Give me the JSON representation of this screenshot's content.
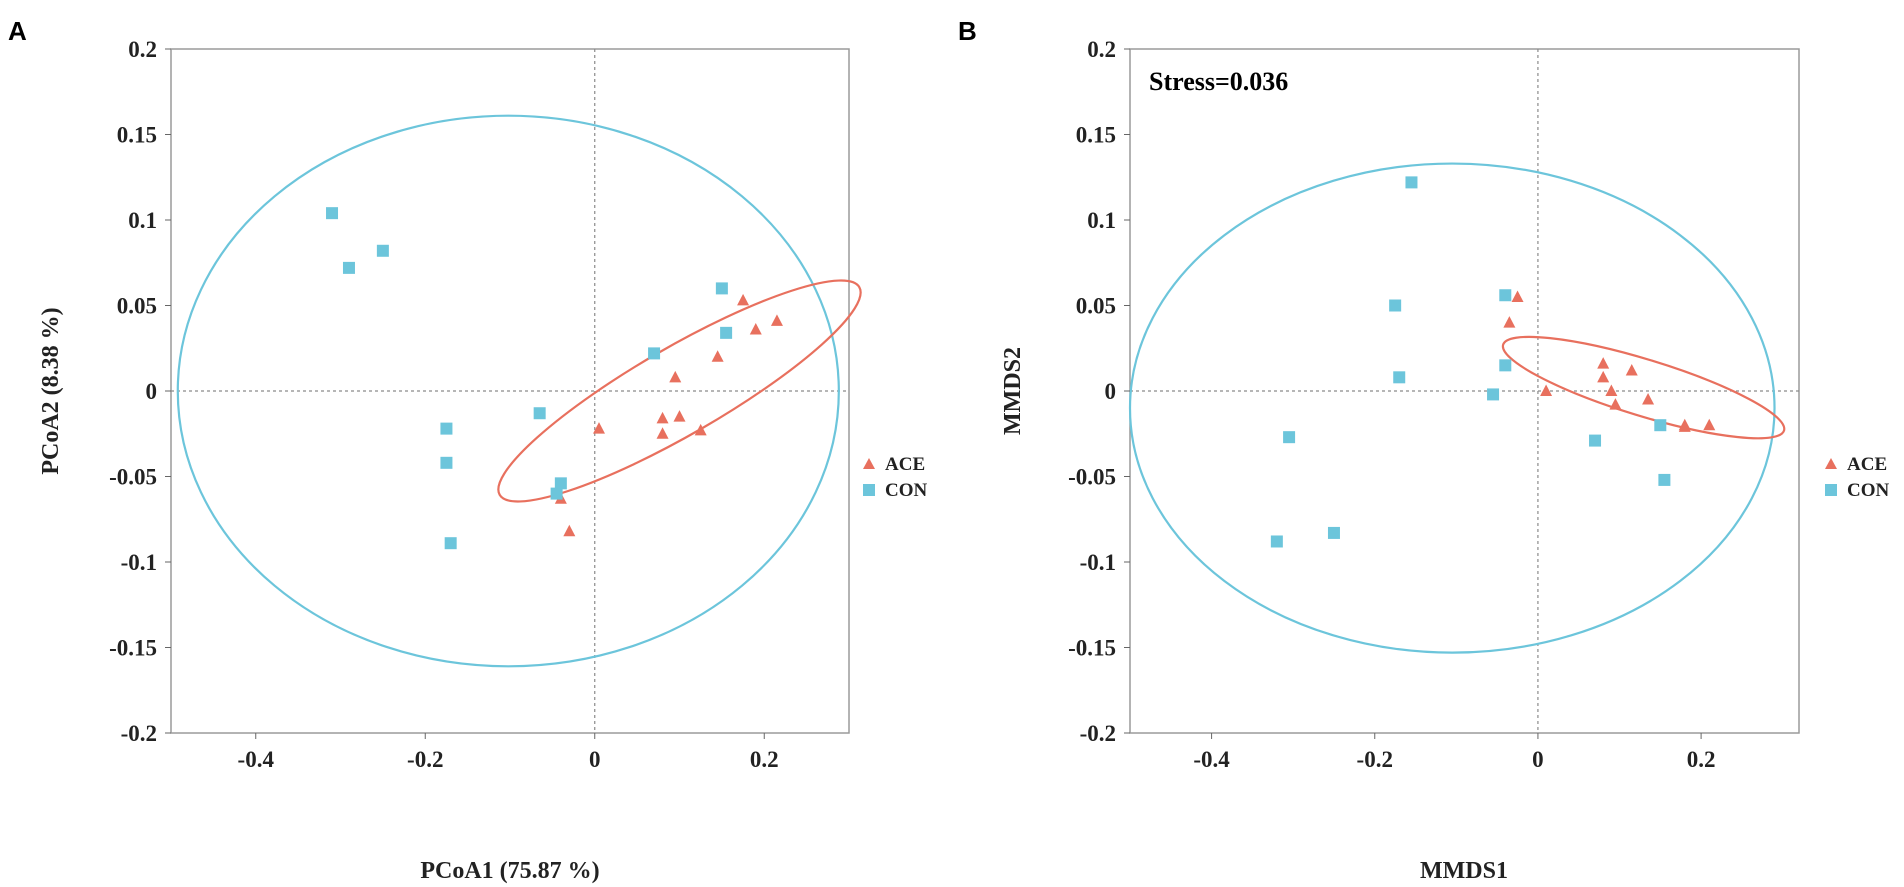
{
  "chart_data": [
    {
      "panel": "A",
      "type": "scatter",
      "xlabel": "PCoA1 (75.87 %)",
      "ylabel": "PCoA2 (8.38 %)",
      "xlim": [
        -0.5,
        0.3
      ],
      "ylim": [
        -0.2,
        0.2
      ],
      "xticks": [
        -0.4,
        -0.2,
        0,
        0.2
      ],
      "xtick_labels": [
        "-0.4",
        "-0.2",
        "0",
        "0.2"
      ],
      "yticks": [
        0.2,
        0.15,
        0.1,
        0.05,
        0,
        -0.05,
        -0.1,
        -0.15,
        -0.2
      ],
      "ytick_labels": [
        "0.2",
        "0.15",
        "0.1",
        "0.05",
        "0",
        "-0.05",
        "-0.1",
        "-0.15",
        "-0.2"
      ],
      "reference_lines": {
        "x": 0,
        "y": 0
      },
      "legend_position": "right",
      "series": [
        {
          "name": "ACE",
          "marker": "triangle",
          "color": "#E8705E",
          "points": [
            [
              0.005,
              -0.022
            ],
            [
              0.095,
              0.008
            ],
            [
              0.08,
              -0.016
            ],
            [
              0.1,
              -0.015
            ],
            [
              0.08,
              -0.025
            ],
            [
              0.125,
              -0.023
            ],
            [
              0.145,
              0.02
            ],
            [
              0.175,
              0.053
            ],
            [
              0.19,
              0.036
            ],
            [
              0.215,
              0.041
            ],
            [
              -0.04,
              -0.063
            ],
            [
              -0.03,
              -0.082
            ]
          ]
        },
        {
          "name": "CON",
          "marker": "square",
          "color": "#6CC5DB",
          "points": [
            [
              -0.31,
              0.104
            ],
            [
              -0.29,
              0.072
            ],
            [
              -0.25,
              0.082
            ],
            [
              -0.175,
              -0.022
            ],
            [
              -0.175,
              -0.042
            ],
            [
              -0.17,
              -0.089
            ],
            [
              -0.065,
              -0.013
            ],
            [
              -0.045,
              -0.06
            ],
            [
              -0.04,
              -0.054
            ],
            [
              0.07,
              0.022
            ],
            [
              0.15,
              0.06
            ],
            [
              0.155,
              0.034
            ]
          ]
        }
      ],
      "ellipses": [
        {
          "group": "CON",
          "color": "#6CC5DB",
          "center": [
            -0.102,
            0.0
          ],
          "radii": [
            0.39,
            0.161
          ],
          "angle_deg": 0
        },
        {
          "group": "ACE",
          "color": "#E8705E",
          "center": [
            0.1,
            0.0
          ],
          "radii": [
            0.245,
            0.0255
          ],
          "angle_deg": 30
        }
      ]
    },
    {
      "panel": "B",
      "type": "scatter",
      "xlabel": "MMDS1",
      "ylabel": "MMDS2",
      "annotation": "Stress=0.036",
      "xlim": [
        -0.5,
        0.32
      ],
      "ylim": [
        -0.2,
        0.2
      ],
      "xticks": [
        -0.4,
        -0.2,
        0,
        0.2
      ],
      "xtick_labels": [
        "-0.4",
        "-0.2",
        "0",
        "0.2"
      ],
      "yticks": [
        0.2,
        0.15,
        0.1,
        0.05,
        0,
        -0.05,
        -0.1,
        -0.15,
        -0.2
      ],
      "ytick_labels": [
        "0.2",
        "0.15",
        "0.1",
        "0.05",
        "0",
        "-0.05",
        "-0.1",
        "-0.15",
        "-0.2"
      ],
      "reference_lines": {
        "x": 0,
        "y": 0
      },
      "legend_position": "right",
      "series": [
        {
          "name": "ACE",
          "marker": "triangle",
          "color": "#E8705E",
          "points": [
            [
              -0.025,
              0.055
            ],
            [
              -0.035,
              0.04
            ],
            [
              0.01,
              0.0
            ],
            [
              0.08,
              0.016
            ],
            [
              0.08,
              0.008
            ],
            [
              0.09,
              0.0
            ],
            [
              0.095,
              -0.008
            ],
            [
              0.115,
              0.012
            ],
            [
              0.135,
              -0.005
            ],
            [
              0.18,
              -0.02
            ],
            [
              0.18,
              -0.021
            ],
            [
              0.21,
              -0.02
            ]
          ]
        },
        {
          "name": "CON",
          "marker": "square",
          "color": "#6CC5DB",
          "points": [
            [
              -0.155,
              0.122
            ],
            [
              -0.175,
              0.05
            ],
            [
              -0.17,
              0.008
            ],
            [
              -0.04,
              0.056
            ],
            [
              -0.04,
              0.015
            ],
            [
              -0.055,
              -0.002
            ],
            [
              -0.305,
              -0.027
            ],
            [
              -0.32,
              -0.088
            ],
            [
              -0.25,
              -0.083
            ],
            [
              0.07,
              -0.029
            ],
            [
              0.15,
              -0.02
            ],
            [
              0.155,
              -0.052
            ]
          ]
        }
      ],
      "ellipses": [
        {
          "group": "CON",
          "color": "#6CC5DB",
          "center": [
            -0.105,
            -0.01
          ],
          "radii": [
            0.395,
            0.143
          ],
          "angle_deg": 0
        },
        {
          "group": "ACE",
          "color": "#E8705E",
          "center": [
            0.1295,
            0.002
          ],
          "radii": [
            0.18,
            0.0165
          ],
          "angle_deg": -17
        }
      ]
    }
  ]
}
